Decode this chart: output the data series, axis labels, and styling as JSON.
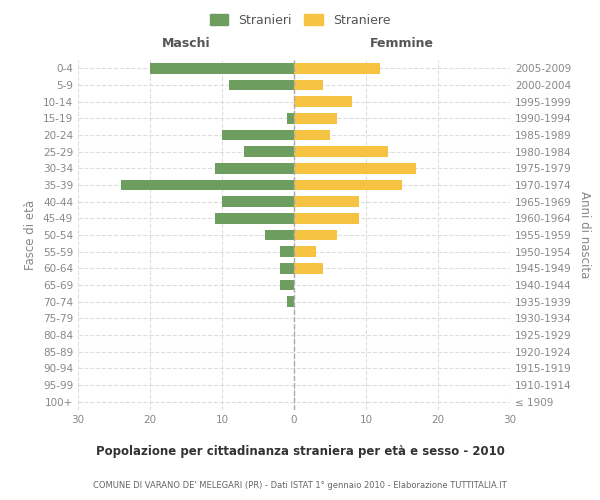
{
  "age_groups": [
    "100+",
    "95-99",
    "90-94",
    "85-89",
    "80-84",
    "75-79",
    "70-74",
    "65-69",
    "60-64",
    "55-59",
    "50-54",
    "45-49",
    "40-44",
    "35-39",
    "30-34",
    "25-29",
    "20-24",
    "15-19",
    "10-14",
    "5-9",
    "0-4"
  ],
  "birth_years": [
    "≤ 1909",
    "1910-1914",
    "1915-1919",
    "1920-1924",
    "1925-1929",
    "1930-1934",
    "1935-1939",
    "1940-1944",
    "1945-1949",
    "1950-1954",
    "1955-1959",
    "1960-1964",
    "1965-1969",
    "1970-1974",
    "1975-1979",
    "1980-1984",
    "1985-1989",
    "1990-1994",
    "1995-1999",
    "2000-2004",
    "2005-2009"
  ],
  "males": [
    0,
    0,
    0,
    0,
    0,
    0,
    1,
    2,
    2,
    2,
    4,
    11,
    10,
    24,
    11,
    7,
    10,
    1,
    0,
    9,
    20
  ],
  "females": [
    0,
    0,
    0,
    0,
    0,
    0,
    0,
    0,
    4,
    3,
    6,
    9,
    9,
    15,
    17,
    13,
    5,
    6,
    8,
    4,
    12
  ],
  "male_color": "#6e9e5f",
  "female_color": "#f5c242",
  "male_label": "Stranieri",
  "female_label": "Straniere",
  "title": "Popolazione per cittadinanza straniera per età e sesso - 2010",
  "subtitle": "COMUNE DI VARANO DE' MELEGARI (PR) - Dati ISTAT 1° gennaio 2010 - Elaborazione TUTTITALIA.IT",
  "xlabel_left": "Maschi",
  "xlabel_right": "Femmine",
  "ylabel_left": "Fasce di età",
  "ylabel_right": "Anni di nascita",
  "xlim": 30,
  "background_color": "#ffffff",
  "grid_color": "#dddddd",
  "tick_color": "#888888"
}
